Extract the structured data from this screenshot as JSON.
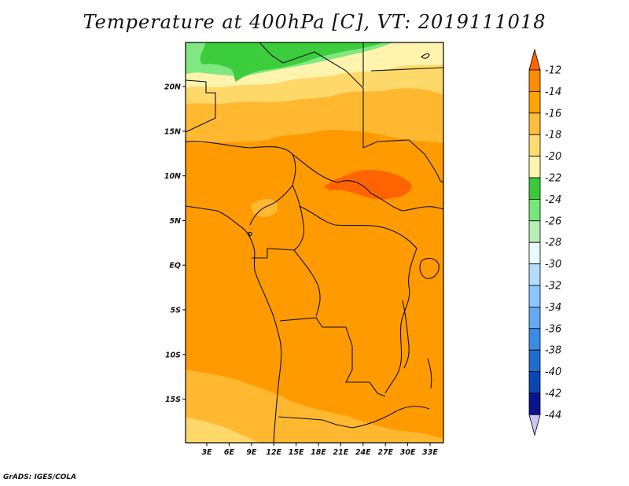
{
  "title": "Temperature at 400hPa [C], VT: 2019111018",
  "credit": "GrADS: IGES/COLA",
  "lon_labels": [
    "3E",
    "6E",
    "9E",
    "12E",
    "15E",
    "18E",
    "21E",
    "24E",
    "27E",
    "30E",
    "33E"
  ],
  "lat_labels": [
    "20N",
    "15N",
    "10N",
    "5N",
    "EQ",
    "5S",
    "10S",
    "15S"
  ],
  "colorbar": {
    "labels": [
      "-12",
      "-14",
      "-16",
      "-18",
      "-20",
      "-22",
      "-24",
      "-26",
      "-28",
      "-30",
      "-32",
      "-34",
      "-36",
      "-38",
      "-40",
      "-42",
      "-44"
    ],
    "colors": [
      "#ff6400",
      "#ff8c00",
      "#ffa500",
      "#ffbe3c",
      "#ffdc6e",
      "#fff5b0",
      "#3cc83c",
      "#78e678",
      "#b4f0b4",
      "#e6faff",
      "#b4dcff",
      "#8cc8ff",
      "#64aaf0",
      "#3c8ce6",
      "#1e6ed2",
      "#0a46b4",
      "#0a148c",
      "#c8c8f0"
    ]
  },
  "map_colors": {
    "warm": "#ff6400",
    "orange": "#ff9b00",
    "light_orange": "#ffb830",
    "yellow": "#ffd86a",
    "pale": "#fff3ad",
    "green_light": "#80e880",
    "green": "#3ccd3c"
  }
}
